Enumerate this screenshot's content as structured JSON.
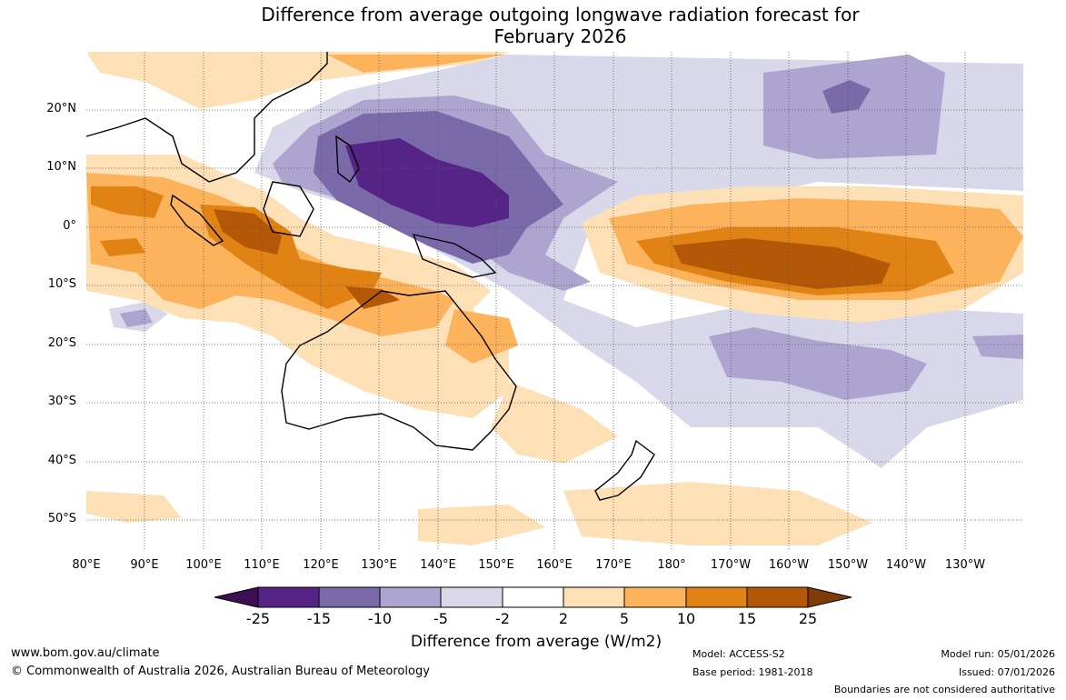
{
  "title": {
    "line1": "Difference from average outgoing longwave radiation forecast for",
    "line2": "February 2026"
  },
  "map": {
    "lat_labels": [
      "20°N",
      "10°N",
      "0°",
      "10°S",
      "20°S",
      "30°S",
      "40°S",
      "50°S"
    ],
    "lon_labels": [
      "80°E",
      "90°E",
      "100°E",
      "110°E",
      "120°E",
      "130°E",
      "140°E",
      "150°E",
      "160°E",
      "170°E",
      "180°",
      "170°W",
      "160°W",
      "150°W",
      "140°W",
      "130°W"
    ]
  },
  "colorbar": {
    "title": "Difference from average (W/m2)",
    "tick_labels": [
      "-25",
      "-15",
      "-10",
      "-5",
      "-2",
      "2",
      "5",
      "10",
      "15",
      "25"
    ],
    "colors": [
      "#3b0f52",
      "#552486",
      "#7b6aa9",
      "#ada5cf",
      "#d8d8ea",
      "#ffffff",
      "#fde0b6",
      "#fcb35c",
      "#e08214",
      "#b35806",
      "#7f3b08"
    ]
  },
  "footer": {
    "website": "www.bom.gov.au/climate",
    "copyright": "© Commonwealth of Australia 2026, Australian Bureau of Meteorology",
    "model": "Model: ACCESS-S2",
    "base_period": "Base period: 1981-2018",
    "model_run": "Model run: 05/01/2026",
    "issued": "Issued: 07/01/2026",
    "disclaimer": "Boundaries are not considered authoritative"
  }
}
